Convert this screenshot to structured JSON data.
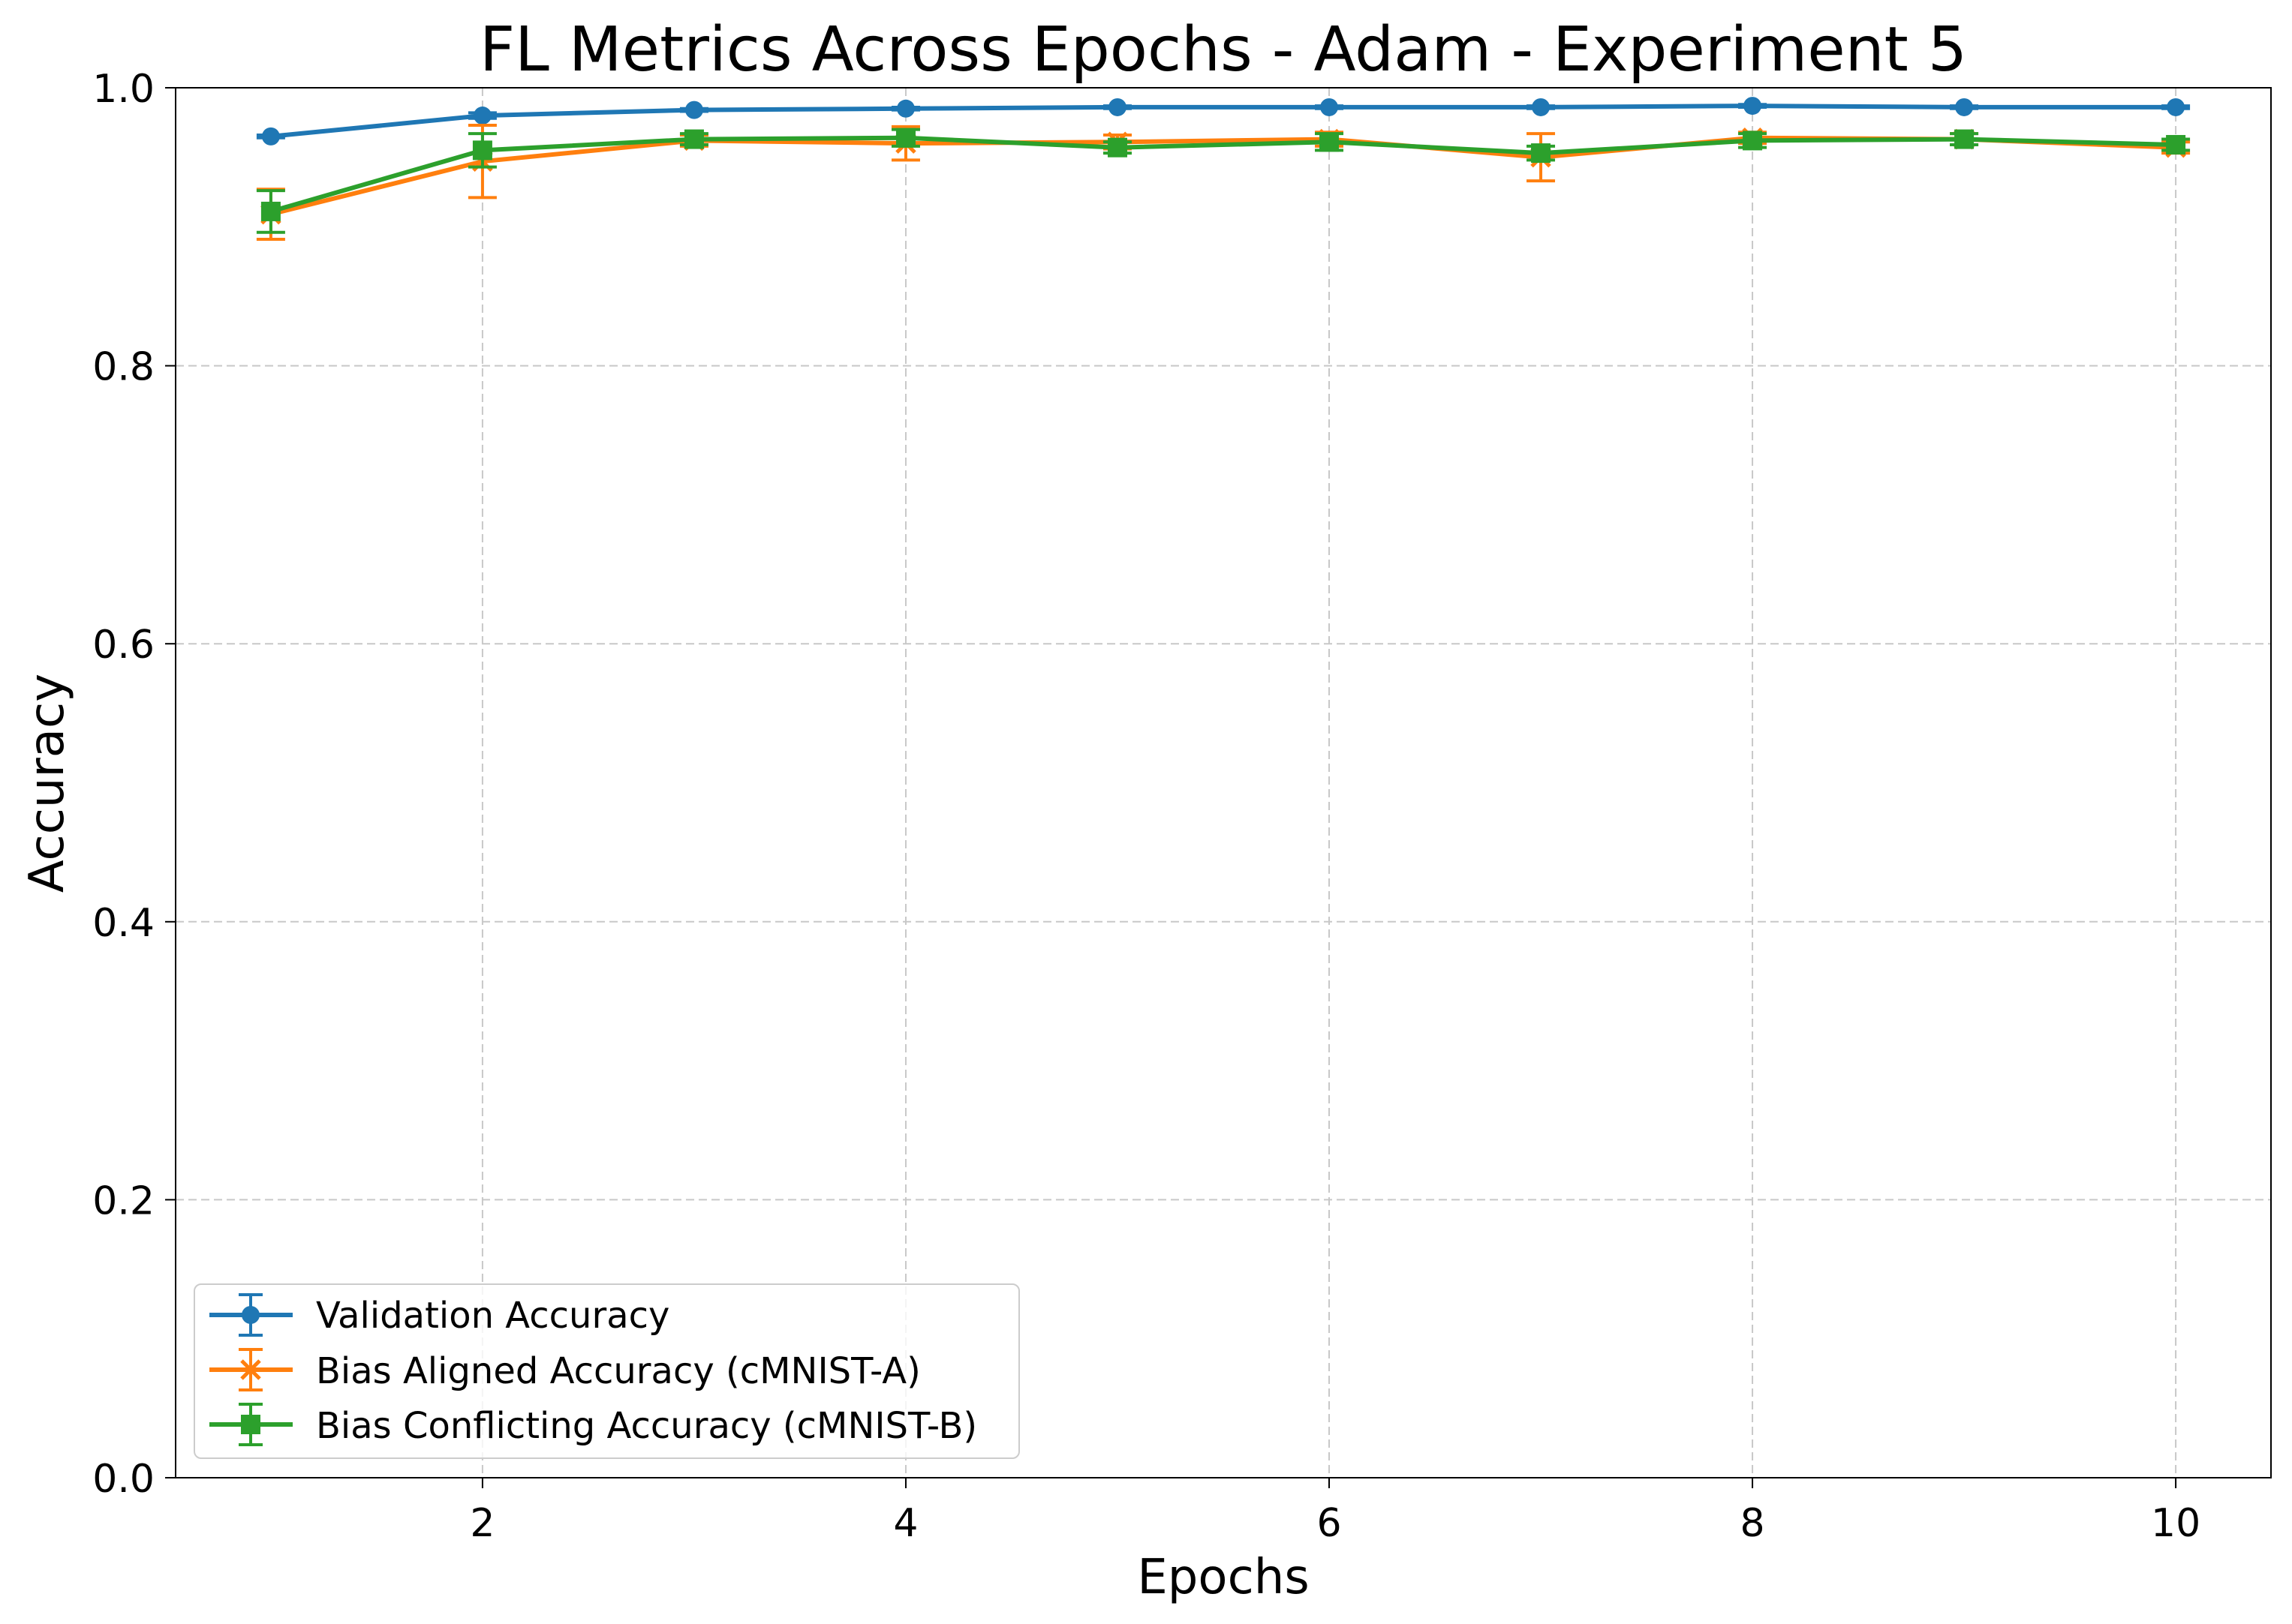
{
  "chart_data": {
    "type": "line",
    "title": "FL Metrics Across Epochs - Adam - Experiment 5",
    "xlabel": "Epochs",
    "ylabel": "Accuracy",
    "x": [
      1,
      2,
      3,
      4,
      5,
      6,
      7,
      8,
      9,
      10
    ],
    "xlim": [
      0.55,
      10.45
    ],
    "ylim": [
      0.0,
      1.0
    ],
    "xtick_labels": [
      "2",
      "4",
      "6",
      "8",
      "10"
    ],
    "ytick_labels": [
      "0.0",
      "0.2",
      "0.4",
      "0.6",
      "0.8",
      "1.0"
    ],
    "grid": true,
    "legend_position": "lower-left",
    "series": [
      {
        "name": "Validation Accuracy",
        "color": "#1f77b4",
        "marker": "circle",
        "values": [
          0.965,
          0.98,
          0.984,
          0.985,
          0.986,
          0.986,
          0.986,
          0.987,
          0.986,
          0.986
        ],
        "errors": [
          0.001,
          0.002,
          0.001,
          0.001,
          0.001,
          0.001,
          0.001,
          0.001,
          0.001,
          0.001
        ]
      },
      {
        "name": "Bias Aligned Accuracy (cMNIST-A)",
        "color": "#ff7f0e",
        "marker": "x",
        "values": [
          0.909,
          0.947,
          0.962,
          0.96,
          0.961,
          0.963,
          0.95,
          0.964,
          0.963,
          0.957
        ],
        "errors": [
          0.018,
          0.026,
          0.004,
          0.012,
          0.005,
          0.005,
          0.017,
          0.004,
          0.004,
          0.004
        ]
      },
      {
        "name": "Bias Conflicting Accuracy (cMNIST-B)",
        "color": "#2ca02c",
        "marker": "square",
        "values": [
          0.911,
          0.955,
          0.963,
          0.964,
          0.957,
          0.961,
          0.953,
          0.962,
          0.963,
          0.959
        ],
        "errors": [
          0.015,
          0.012,
          0.004,
          0.006,
          0.004,
          0.006,
          0.005,
          0.005,
          0.004,
          0.004
        ]
      }
    ]
  }
}
